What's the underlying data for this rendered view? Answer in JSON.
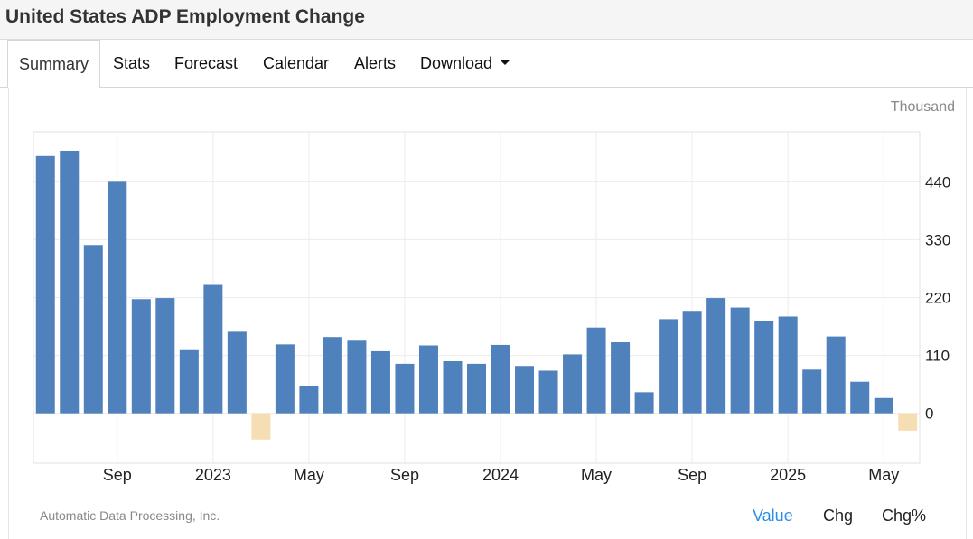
{
  "page": {
    "title": "United States ADP Employment Change"
  },
  "tabs": [
    {
      "label": "Summary"
    },
    {
      "label": "Stats"
    },
    {
      "label": "Forecast"
    },
    {
      "label": "Calendar"
    },
    {
      "label": "Alerts"
    },
    {
      "label": "Download"
    }
  ],
  "chart_data": {
    "type": "bar",
    "unit_label": "Thousand",
    "x_tick_labels": [
      "Sep",
      "2023",
      "May",
      "Sep",
      "2024",
      "May",
      "Sep",
      "2025",
      "May"
    ],
    "y_ticks": [
      0,
      110,
      220,
      330,
      440
    ],
    "ylim": [
      -95,
      535
    ],
    "values": [
      489,
      499,
      320,
      440,
      217,
      219,
      120,
      244,
      155,
      -50,
      131,
      52,
      145,
      138,
      118,
      94,
      129,
      99,
      94,
      130,
      90,
      81,
      112,
      163,
      135,
      40,
      179,
      193,
      219,
      201,
      175,
      184,
      83,
      146,
      60,
      29,
      -33
    ],
    "bar_colors": {
      "positive": "#4f81bd",
      "negative": "#f5deb3"
    },
    "grid": true,
    "tick_label_anchor": {
      "Sep": 3,
      "2023": 7,
      "May": 11
    }
  },
  "footer": {
    "source": "Automatic Data Processing, Inc.",
    "views": [
      {
        "label": "Value",
        "active": true
      },
      {
        "label": "Chg",
        "active": false
      },
      {
        "label": "Chg%",
        "active": false
      }
    ]
  }
}
